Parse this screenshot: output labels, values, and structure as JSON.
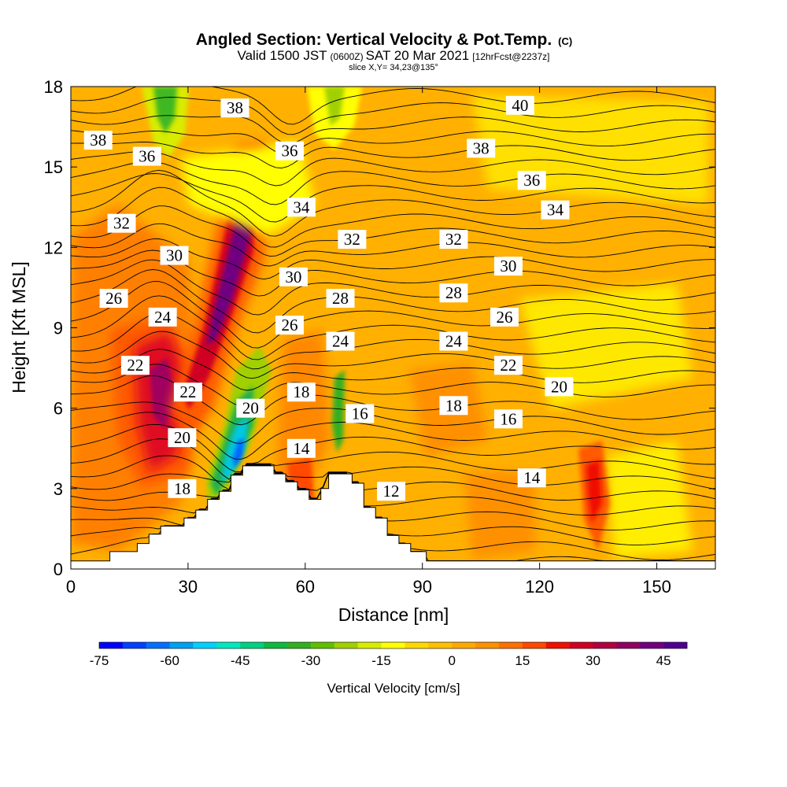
{
  "title": {
    "main": "Angled Section: Vertical Velocity & Pot.Temp.",
    "main_units": "(C)",
    "valid_a": "Valid 1500 JST",
    "valid_zone": "(0600Z)",
    "valid_b": "SAT 20 Mar 2021",
    "valid_fcst": "[12hrFcst@2237z]",
    "slice": "slice X,Y= 34,23@135°"
  },
  "chart_data": {
    "type": "heatmap",
    "xlabel": "Distance [nm]",
    "ylabel": "Height [Kft MSL]",
    "xlim": [
      0,
      165
    ],
    "ylim": [
      0,
      18
    ],
    "x_ticks": [
      "0",
      "30",
      "60",
      "90",
      "120",
      "150"
    ],
    "x_tick_values": [
      0,
      30,
      60,
      90,
      120,
      150
    ],
    "y_ticks": [
      "0",
      "3",
      "6",
      "9",
      "12",
      "15",
      "18"
    ],
    "y_tick_values": [
      0,
      3,
      6,
      9,
      12,
      15,
      18
    ],
    "colorbar": {
      "label": "Vertical Velocity [cm/s]",
      "range": [
        -75,
        50
      ],
      "step": 5,
      "tick_labels": [
        "-75",
        "-60",
        "-45",
        "-30",
        "-15",
        "0",
        "15",
        "30",
        "45"
      ],
      "tick_values": [
        -75,
        -60,
        -45,
        -30,
        -15,
        0,
        15,
        30,
        45
      ],
      "colors": [
        "#0000ff",
        "#0040ff",
        "#0070ff",
        "#00a0f0",
        "#00d0ff",
        "#00e8c0",
        "#00d080",
        "#10b840",
        "#30b020",
        "#60c000",
        "#a0d000",
        "#d8ec00",
        "#ffff00",
        "#ffd800",
        "#ffc000",
        "#ffa800",
        "#ff9000",
        "#ff7000",
        "#ff4800",
        "#f01000",
        "#d00020",
        "#b00040",
        "#900060",
        "#700080",
        "#500090"
      ]
    },
    "terrain_profile": [
      [
        0,
        0.3
      ],
      [
        10,
        0.3
      ],
      [
        10,
        0.65
      ],
      [
        17,
        0.65
      ],
      [
        17,
        0.95
      ],
      [
        20,
        0.95
      ],
      [
        20,
        1.3
      ],
      [
        23,
        1.3
      ],
      [
        23,
        1.6
      ],
      [
        26,
        1.6
      ],
      [
        26,
        1.6
      ],
      [
        29,
        1.6
      ],
      [
        29,
        1.9
      ],
      [
        32,
        1.9
      ],
      [
        32,
        2.2
      ],
      [
        35,
        2.2
      ],
      [
        35,
        2.6
      ],
      [
        38,
        2.6
      ],
      [
        38,
        2.9
      ],
      [
        41,
        2.9
      ],
      [
        41,
        3.5
      ],
      [
        44,
        3.5
      ],
      [
        44,
        3.85
      ],
      [
        52,
        3.85
      ],
      [
        52,
        3.55
      ],
      [
        55,
        3.55
      ],
      [
        55,
        3.25
      ],
      [
        58,
        3.25
      ],
      [
        58,
        2.95
      ],
      [
        61,
        2.95
      ],
      [
        61,
        2.6
      ],
      [
        64,
        2.6
      ],
      [
        64,
        3.0
      ],
      [
        66,
        3.0
      ],
      [
        66,
        3.55
      ],
      [
        72,
        3.55
      ],
      [
        72,
        3.2
      ],
      [
        75,
        3.2
      ],
      [
        75,
        2.3
      ],
      [
        78,
        2.3
      ],
      [
        78,
        1.9
      ],
      [
        81,
        1.9
      ],
      [
        81,
        1.25
      ],
      [
        84,
        1.25
      ],
      [
        84,
        0.95
      ],
      [
        87,
        0.95
      ],
      [
        87,
        0.65
      ],
      [
        91,
        0.65
      ],
      [
        91,
        0.3
      ],
      [
        165,
        0.3
      ]
    ],
    "theta_contour_labels": [
      {
        "text": "38",
        "x": 7,
        "y": 16
      },
      {
        "text": "36",
        "x": 19.5,
        "y": 15.4
      },
      {
        "text": "38",
        "x": 42,
        "y": 17.2
      },
      {
        "text": "36",
        "x": 56,
        "y": 15.6
      },
      {
        "text": "34",
        "x": 59,
        "y": 13.5
      },
      {
        "text": "32",
        "x": 13,
        "y": 12.9
      },
      {
        "text": "30",
        "x": 26.5,
        "y": 11.7
      },
      {
        "text": "32",
        "x": 72,
        "y": 12.3
      },
      {
        "text": "30",
        "x": 57,
        "y": 10.9
      },
      {
        "text": "26",
        "x": 11,
        "y": 10.1
      },
      {
        "text": "24",
        "x": 23.5,
        "y": 9.4
      },
      {
        "text": "28",
        "x": 69,
        "y": 10.1
      },
      {
        "text": "26",
        "x": 56,
        "y": 9.1
      },
      {
        "text": "24",
        "x": 69,
        "y": 8.5
      },
      {
        "text": "22",
        "x": 16.5,
        "y": 7.6
      },
      {
        "text": "22",
        "x": 30,
        "y": 6.6
      },
      {
        "text": "18",
        "x": 59,
        "y": 6.6
      },
      {
        "text": "20",
        "x": 46,
        "y": 6.0
      },
      {
        "text": "16",
        "x": 74,
        "y": 5.8
      },
      {
        "text": "20",
        "x": 28.5,
        "y": 4.9
      },
      {
        "text": "14",
        "x": 59,
        "y": 4.5
      },
      {
        "text": "18",
        "x": 28.5,
        "y": 3.0
      },
      {
        "text": "12",
        "x": 82,
        "y": 2.9
      },
      {
        "text": "40",
        "x": 115,
        "y": 17.3
      },
      {
        "text": "38",
        "x": 105,
        "y": 15.7
      },
      {
        "text": "36",
        "x": 118,
        "y": 14.5
      },
      {
        "text": "34",
        "x": 124,
        "y": 13.4
      },
      {
        "text": "32",
        "x": 98,
        "y": 12.3
      },
      {
        "text": "30",
        "x": 112,
        "y": 11.3
      },
      {
        "text": "28",
        "x": 98,
        "y": 10.3
      },
      {
        "text": "26",
        "x": 111,
        "y": 9.4
      },
      {
        "text": "24",
        "x": 98,
        "y": 8.5
      },
      {
        "text": "22",
        "x": 112,
        "y": 7.6
      },
      {
        "text": "20",
        "x": 125,
        "y": 6.8
      },
      {
        "text": "18",
        "x": 98,
        "y": 6.1
      },
      {
        "text": "16",
        "x": 112,
        "y": 5.6
      },
      {
        "text": "14",
        "x": 118,
        "y": 3.4
      }
    ]
  }
}
